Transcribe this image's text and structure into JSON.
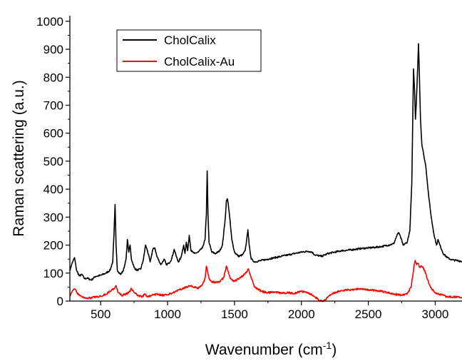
{
  "chart_data": {
    "type": "line",
    "title": "",
    "xlabel": "Wavenumber (cm",
    "xlabel_sup": "-1",
    "xlabel_suffix": ")",
    "ylabel": "Raman scattering (a.u.)",
    "xlim": [
      270,
      3200
    ],
    "ylim": [
      0,
      1020
    ],
    "xticks": [
      500,
      1000,
      1500,
      2000,
      2500,
      3000
    ],
    "xtick_labels": [
      "500",
      "1000",
      "1500",
      "2000",
      "2500",
      "3000"
    ],
    "yticks": [
      0,
      100,
      200,
      300,
      400,
      500,
      600,
      700,
      800,
      900,
      1000
    ],
    "ytick_labels": [
      "0",
      "100",
      "200",
      "300",
      "400",
      "500",
      "600",
      "700",
      "800",
      "900",
      "1000"
    ],
    "grid": false,
    "legend": "top-left",
    "series": [
      {
        "name": "CholCalix",
        "color": "#000000",
        "x": [
          270,
          290,
          305,
          320,
          340,
          360,
          380,
          400,
          430,
          460,
          500,
          540,
          570,
          590,
          600,
          608,
          615,
          625,
          650,
          670,
          690,
          700,
          710,
          720,
          730,
          750,
          770,
          800,
          820,
          835,
          850,
          870,
          890,
          905,
          920,
          950,
          975,
          990,
          1010,
          1030,
          1050,
          1065,
          1080,
          1100,
          1120,
          1130,
          1140,
          1150,
          1162,
          1175,
          1200,
          1230,
          1260,
          1280,
          1290,
          1296,
          1302,
          1310,
          1330,
          1360,
          1390,
          1410,
          1430,
          1440,
          1448,
          1460,
          1480,
          1500,
          1530,
          1560,
          1580,
          1590,
          1600,
          1610,
          1625,
          1650,
          1700,
          1750,
          1800,
          1850,
          1900,
          1950,
          2000,
          2050,
          2080,
          2100,
          2150,
          2200,
          2250,
          2300,
          2350,
          2400,
          2450,
          2500,
          2550,
          2600,
          2650,
          2690,
          2710,
          2725,
          2740,
          2760,
          2790,
          2810,
          2825,
          2838,
          2845,
          2852,
          2858,
          2866,
          2875,
          2882,
          2890,
          2900,
          2915,
          2930,
          2950,
          2970,
          2990,
          3010,
          3020,
          3035,
          3060,
          3090,
          3120,
          3160,
          3200
        ],
        "values": [
          110,
          140,
          155,
          110,
          90,
          95,
          80,
          82,
          75,
          88,
          92,
          100,
          110,
          140,
          240,
          345,
          200,
          110,
          95,
          110,
          150,
          220,
          175,
          200,
          150,
          120,
          110,
          115,
          150,
          200,
          180,
          140,
          185,
          190,
          160,
          130,
          150,
          130,
          135,
          150,
          185,
          160,
          140,
          155,
          200,
          170,
          210,
          180,
          235,
          180,
          170,
          175,
          190,
          220,
          310,
          465,
          310,
          210,
          175,
          170,
          180,
          200,
          290,
          360,
          365,
          320,
          220,
          175,
          160,
          165,
          180,
          215,
          255,
          200,
          150,
          140,
          145,
          150,
          155,
          160,
          165,
          170,
          175,
          178,
          175,
          165,
          160,
          170,
          175,
          180,
          182,
          185,
          188,
          190,
          192,
          195,
          200,
          205,
          230,
          245,
          230,
          200,
          210,
          250,
          420,
          830,
          760,
          650,
          700,
          800,
          920,
          800,
          650,
          560,
          520,
          480,
          380,
          300,
          240,
          200,
          220,
          200,
          170,
          155,
          148,
          145,
          142
        ]
      },
      {
        "name": "CholCalix-Au",
        "color": "#ff0000",
        "x": [
          270,
          290,
          310,
          330,
          360,
          400,
          430,
          460,
          500,
          540,
          570,
          600,
          615,
          630,
          660,
          690,
          710,
          730,
          750,
          780,
          810,
          830,
          850,
          880,
          920,
          960,
          1000,
          1040,
          1080,
          1110,
          1140,
          1170,
          1200,
          1230,
          1260,
          1280,
          1290,
          1297,
          1310,
          1330,
          1360,
          1390,
          1420,
          1440,
          1450,
          1470,
          1500,
          1530,
          1560,
          1590,
          1605,
          1620,
          1650,
          1700,
          1750,
          1800,
          1850,
          1900,
          1950,
          2000,
          2050,
          2080,
          2100,
          2120,
          2140,
          2160,
          2180,
          2200,
          2230,
          2260,
          2300,
          2350,
          2400,
          2450,
          2500,
          2550,
          2600,
          2650,
          2700,
          2750,
          2790,
          2820,
          2840,
          2850,
          2860,
          2870,
          2885,
          2900,
          2920,
          2940,
          2960,
          2980,
          3000,
          3030,
          3060,
          3100,
          3150,
          3200
        ],
        "values": [
          20,
          38,
          42,
          25,
          15,
          10,
          12,
          14,
          18,
          25,
          35,
          45,
          55,
          30,
          20,
          25,
          30,
          45,
          30,
          20,
          15,
          25,
          15,
          20,
          25,
          20,
          22,
          30,
          40,
          45,
          50,
          55,
          50,
          45,
          60,
          80,
          125,
          110,
          80,
          70,
          65,
          70,
          85,
          125,
          110,
          80,
          70,
          80,
          90,
          105,
          115,
          90,
          50,
          35,
          30,
          32,
          28,
          30,
          28,
          35,
          30,
          22,
          15,
          8,
          0,
          0,
          5,
          15,
          25,
          32,
          38,
          40,
          42,
          45,
          40,
          38,
          35,
          30,
          25,
          20,
          25,
          50,
          120,
          145,
          130,
          135,
          120,
          125,
          110,
          80,
          55,
          40,
          30,
          25,
          20,
          15,
          15,
          12
        ]
      }
    ]
  }
}
